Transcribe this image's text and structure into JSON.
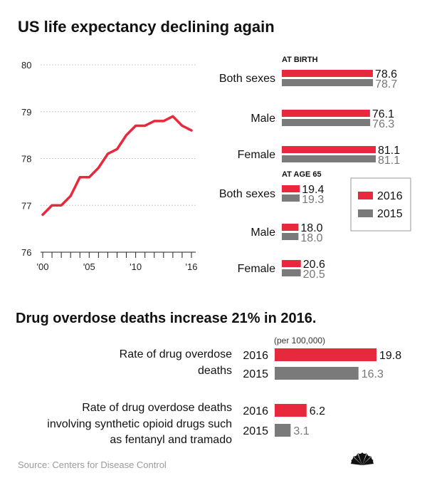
{
  "chart_data": [
    {
      "type": "line",
      "title": "US life expectancy declining again",
      "x": [
        2000,
        2001,
        2002,
        2003,
        2004,
        2005,
        2006,
        2007,
        2008,
        2009,
        2010,
        2011,
        2012,
        2013,
        2014,
        2015,
        2016
      ],
      "x_tick_labels": [
        "'00",
        "'05",
        "'10",
        "'16"
      ],
      "series": [
        {
          "values": [
            76.8,
            77.0,
            77.0,
            77.2,
            77.6,
            77.6,
            77.8,
            78.1,
            78.2,
            78.5,
            78.7,
            78.7,
            78.8,
            78.8,
            78.9,
            78.7,
            78.6
          ]
        }
      ],
      "y_ticks": [
        76,
        77,
        78,
        79,
        80
      ],
      "ylim": [
        76,
        80
      ],
      "grid": true,
      "line_color": "#e8283c"
    },
    {
      "type": "bar",
      "orientation": "horizontal",
      "sections": [
        {
          "label": "AT BIRTH",
          "categories": [
            "Both sexes",
            "Male",
            "Female"
          ],
          "series": [
            {
              "name": "2016",
              "values": [
                "78.6",
                "76.1",
                "81.1"
              ]
            },
            {
              "name": "2015",
              "values": [
                "78.7",
                "76.3",
                "81.1"
              ]
            }
          ]
        },
        {
          "label": "AT AGE 65",
          "categories": [
            "Both sexes",
            "Male",
            "Female"
          ],
          "series": [
            {
              "name": "2016",
              "values": [
                "19.4",
                "18.0",
                "20.6"
              ]
            },
            {
              "name": "2015",
              "values": [
                "19.3",
                "18.0",
                "20.5"
              ]
            }
          ]
        }
      ],
      "legend": [
        "2016",
        "2015"
      ],
      "legend_position": "right"
    },
    {
      "type": "bar",
      "orientation": "horizontal",
      "title": "Drug overdose deaths increase 21% in 2016.",
      "unit_note": "(per 100,000)",
      "groups": [
        {
          "label_lines": [
            "Rate of drug overdose",
            "deaths"
          ],
          "rows": [
            {
              "year": "2016",
              "value": "19.8"
            },
            {
              "year": "2015",
              "value": "16.3"
            }
          ]
        },
        {
          "label_lines": [
            "Rate of drug overdose deaths",
            "involving synthetic opioid drugs such",
            "as fentanyl and tramado"
          ],
          "rows": [
            {
              "year": "2016",
              "value": "6.2"
            },
            {
              "year": "2015",
              "value": "3.1"
            }
          ]
        }
      ]
    }
  ],
  "colors": {
    "y2016": "#e8283c",
    "y2015": "#7a7a7a",
    "grid": "#bbbbbb"
  },
  "source": "Source: Centers for Disease Control",
  "logo": "nbc-peacock-icon"
}
